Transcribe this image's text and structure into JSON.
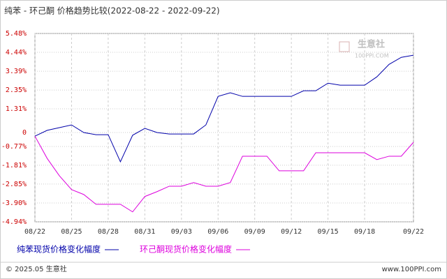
{
  "chart_data": {
    "type": "line",
    "title": "纯苯 - 环己酮 价格趋势比较(2022-08-22 - 2022-09-22)",
    "categories": [
      "08/22",
      null,
      null,
      "08/25",
      null,
      null,
      "08/28",
      null,
      null,
      "08/31",
      null,
      null,
      "09/03",
      null,
      null,
      "09/06",
      null,
      null,
      "09/09",
      null,
      null,
      "09/12",
      null,
      null,
      "09/15",
      null,
      null,
      "09/18",
      null,
      null,
      null,
      "09/22"
    ],
    "series": [
      {
        "name": "纯苯现货价格变化幅度",
        "color": "#0000aa",
        "values": [
          -0.2,
          0.12,
          0.27,
          0.42,
          0,
          -0.12,
          -0.12,
          -1.62,
          -0.15,
          0.23,
          0,
          -0.08,
          -0.08,
          -0.08,
          0.42,
          2.0,
          2.2,
          2.0,
          2.0,
          2.0,
          2.0,
          2.0,
          2.31,
          2.31,
          2.73,
          2.62,
          2.62,
          2.62,
          3.08,
          3.77,
          4.16,
          4.28
        ]
      },
      {
        "name": "环己酮现货价格变化幅度",
        "color": "#dd00dd",
        "values": [
          -0.2,
          -1.43,
          -2.39,
          -3.16,
          -3.43,
          -3.97,
          -3.97,
          -3.97,
          -4.39,
          -3.54,
          -3.27,
          -2.97,
          -2.97,
          -2.77,
          -2.97,
          -2.97,
          -2.77,
          -1.31,
          -1.31,
          -1.31,
          -2.12,
          -2.12,
          -2.12,
          -1.12,
          -1.12,
          -1.12,
          -1.12,
          -1.12,
          -1.5,
          -1.31,
          -1.31,
          -0.54
        ]
      }
    ],
    "ylim": [
      -4.94,
      5.48
    ],
    "yticks": [
      {
        "value": 5.48,
        "label": "5.48%"
      },
      {
        "value": 4.44,
        "label": "4.44%"
      },
      {
        "value": 3.39,
        "label": "3.39%"
      },
      {
        "value": 2.35,
        "label": "2.35%"
      },
      {
        "value": 1.31,
        "label": "1.31%"
      },
      0,
      {
        "value": -0.77,
        "label": "-0.77%"
      },
      {
        "value": -1.81,
        "label": "-1.81%"
      },
      {
        "value": -2.85,
        "label": "-2.85%"
      },
      {
        "value": -3.9,
        "label": "-3.90%"
      },
      {
        "value": -4.94,
        "label": "-4.94%"
      }
    ],
    "grid": true,
    "watermark": {
      "name": "生意社",
      "site": "100PPI.COM"
    },
    "footer": {
      "copyright": "© 2025.05 生意社",
      "site": "www.100PPI.com"
    }
  }
}
